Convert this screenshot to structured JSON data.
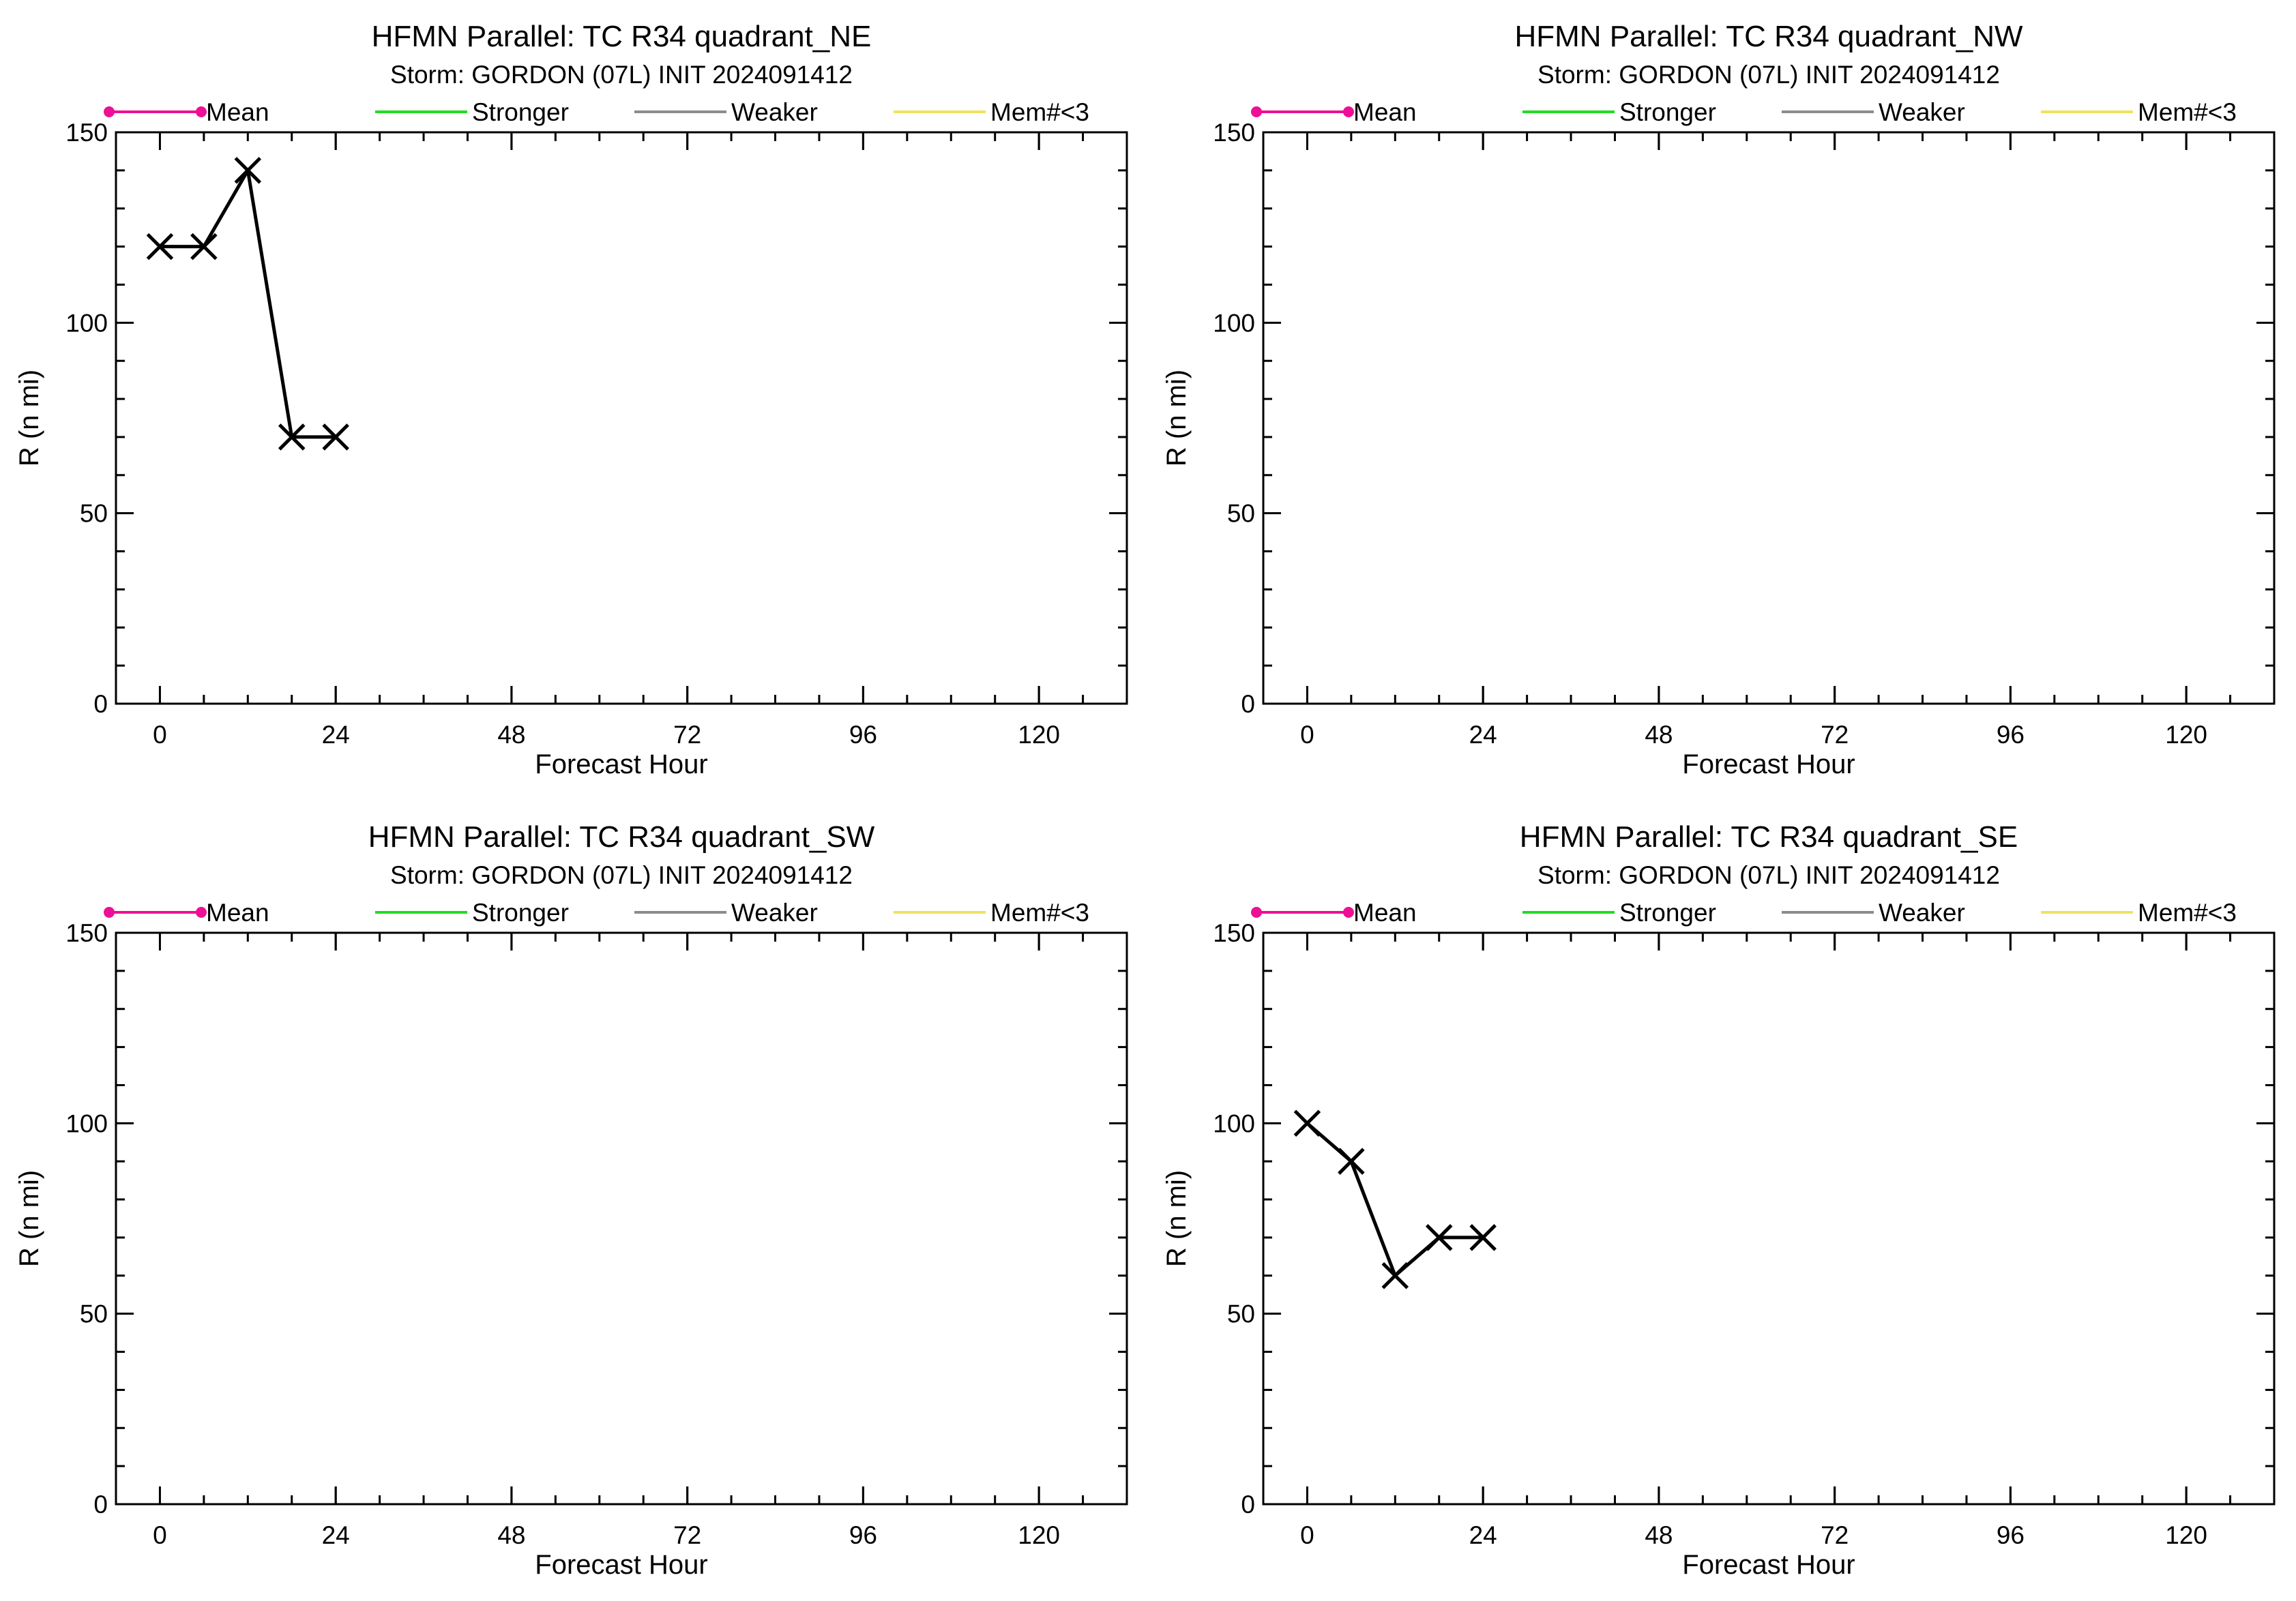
{
  "legend": [
    {
      "label": "Mean",
      "color": "#ee0f96",
      "markers": true
    },
    {
      "label": "Stronger",
      "color": "#22dd22",
      "markers": false
    },
    {
      "label": "Weaker",
      "color": "#8c8c8c",
      "markers": false
    },
    {
      "label": "Mem#<3",
      "color": "#f2e15c",
      "markers": false
    }
  ],
  "chart_data": [
    {
      "type": "line",
      "title": "HFMN Parallel: TC  R34 quadrant_NE",
      "subtitle": "Storm: GORDON (07L) INIT 2024091412",
      "xlabel": "Forecast Hour",
      "ylabel": "R (n mi)",
      "xlim": [
        -6,
        132
      ],
      "ylim": [
        0,
        150
      ],
      "xticks": [
        0,
        24,
        48,
        72,
        96,
        120
      ],
      "yticks": [
        0,
        50,
        100,
        150
      ],
      "series": [
        {
          "x": [
            0,
            6,
            12,
            18,
            24
          ],
          "values": [
            120,
            120,
            140,
            70,
            70
          ],
          "color": "#000000",
          "marker": "x"
        }
      ]
    },
    {
      "type": "line",
      "title": "HFMN Parallel: TC  R34 quadrant_NW",
      "subtitle": "Storm: GORDON (07L) INIT 2024091412",
      "xlabel": "Forecast Hour",
      "ylabel": "R (n mi)",
      "xlim": [
        -6,
        132
      ],
      "ylim": [
        0,
        150
      ],
      "xticks": [
        0,
        24,
        48,
        72,
        96,
        120
      ],
      "yticks": [
        0,
        50,
        100,
        150
      ],
      "series": []
    },
    {
      "type": "line",
      "title": "HFMN Parallel: TC  R34 quadrant_SW",
      "subtitle": "Storm: GORDON (07L) INIT 2024091412",
      "xlabel": "Forecast Hour",
      "ylabel": "R (n mi)",
      "xlim": [
        -6,
        132
      ],
      "ylim": [
        0,
        150
      ],
      "xticks": [
        0,
        24,
        48,
        72,
        96,
        120
      ],
      "yticks": [
        0,
        50,
        100,
        150
      ],
      "series": []
    },
    {
      "type": "line",
      "title": "HFMN Parallel: TC  R34 quadrant_SE",
      "subtitle": "Storm: GORDON (07L) INIT 2024091412",
      "xlabel": "Forecast Hour",
      "ylabel": "R (n mi)",
      "xlim": [
        -6,
        132
      ],
      "ylim": [
        0,
        150
      ],
      "xticks": [
        0,
        24,
        48,
        72,
        96,
        120
      ],
      "yticks": [
        0,
        50,
        100,
        150
      ],
      "series": [
        {
          "x": [
            0,
            6,
            12,
            18,
            24
          ],
          "values": [
            100,
            90,
            60,
            70,
            70
          ],
          "color": "#000000",
          "marker": "x"
        }
      ]
    }
  ]
}
